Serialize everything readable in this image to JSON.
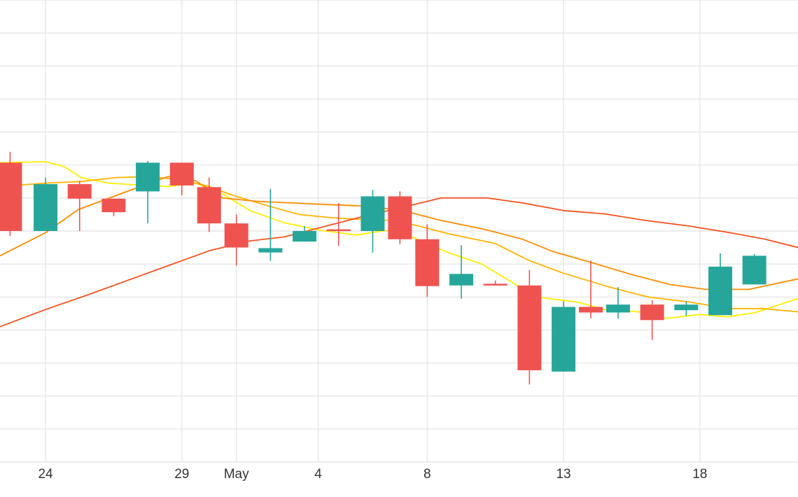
{
  "chart_data": {
    "type": "candlestick",
    "title": "",
    "xlabel": "",
    "ylabel": "",
    "grid": true,
    "x_tick_labels": [
      {
        "day": 0,
        "label": "24"
      },
      {
        "day": 5,
        "label": "29"
      },
      {
        "day": 7,
        "label": "May"
      },
      {
        "day": 10,
        "label": "4"
      },
      {
        "day": 14,
        "label": "8"
      },
      {
        "day": 19,
        "label": "13"
      },
      {
        "day": 24,
        "label": "18"
      }
    ],
    "x_range_days": [
      -1.67,
      27.6
    ],
    "y_range": [
      0,
      14
    ],
    "colors": {
      "up": "#26a69a",
      "down": "#ef5350",
      "ma_short": "#ffee00",
      "ma_2": "#ffb300",
      "ma_3": "#fb8c00",
      "ma_long": "#f4511e"
    },
    "candles": [
      {
        "day": -1.3,
        "open": 9.07,
        "close": 7.0,
        "high": 9.4,
        "low": 6.85
      },
      {
        "day": 0,
        "open": 7.0,
        "close": 8.42,
        "high": 8.62,
        "low": 7.0
      },
      {
        "day": 1.25,
        "open": 8.42,
        "close": 7.98,
        "high": 8.52,
        "low": 7.0
      },
      {
        "day": 2.5,
        "open": 7.98,
        "close": 7.57,
        "high": 7.98,
        "low": 7.45
      },
      {
        "day": 3.75,
        "open": 8.2,
        "close": 9.07,
        "high": 9.12,
        "low": 7.23
      },
      {
        "day": 5,
        "open": 9.07,
        "close": 8.38,
        "high": 9.07,
        "low": 8.08
      },
      {
        "day": 6,
        "open": 8.33,
        "close": 7.23,
        "high": 8.62,
        "low": 6.97
      },
      {
        "day": 7,
        "open": 7.23,
        "close": 6.5,
        "high": 7.5,
        "low": 5.95
      },
      {
        "day": 8.25,
        "open": 6.35,
        "close": 6.48,
        "high": 8.28,
        "low": 6.1
      },
      {
        "day": 9.5,
        "open": 6.68,
        "close": 7.0,
        "high": 7.15,
        "low": 6.68
      },
      {
        "day": 10.75,
        "open": 7.05,
        "close": 7.0,
        "high": 7.85,
        "low": 6.55
      },
      {
        "day": 12,
        "open": 7.0,
        "close": 8.05,
        "high": 8.25,
        "low": 6.35
      },
      {
        "day": 13,
        "open": 8.05,
        "close": 6.75,
        "high": 8.2,
        "low": 6.6
      },
      {
        "day": 14,
        "open": 6.75,
        "close": 5.33,
        "high": 7.2,
        "low": 5.0
      },
      {
        "day": 15.25,
        "open": 5.35,
        "close": 5.7,
        "high": 6.57,
        "low": 4.95
      },
      {
        "day": 16.5,
        "open": 5.4,
        "close": 5.35,
        "high": 5.5,
        "low": 5.35
      },
      {
        "day": 17.75,
        "open": 5.35,
        "close": 2.78,
        "high": 5.82,
        "low": 2.35
      },
      {
        "day": 19,
        "open": 2.74,
        "close": 4.7,
        "high": 4.88,
        "low": 2.74
      },
      {
        "day": 20,
        "open": 4.7,
        "close": 4.53,
        "high": 6.1,
        "low": 4.35
      },
      {
        "day": 21,
        "open": 4.53,
        "close": 4.77,
        "high": 5.3,
        "low": 4.35
      },
      {
        "day": 22.25,
        "open": 4.77,
        "close": 4.3,
        "high": 4.9,
        "low": 3.7
      },
      {
        "day": 23.5,
        "open": 4.6,
        "close": 4.77,
        "high": 4.87,
        "low": 4.43
      },
      {
        "day": 24.75,
        "open": 4.45,
        "close": 5.92,
        "high": 6.32,
        "low": 4.45
      },
      {
        "day": 26,
        "open": 5.38,
        "close": 6.25,
        "high": 6.3,
        "low": 5.5
      }
    ],
    "moving_averages": [
      {
        "color": "#ffee00",
        "points": [
          [
            -1.67,
            9.07
          ],
          [
            0,
            9.1
          ],
          [
            0.7,
            8.95
          ],
          [
            1.3,
            8.62
          ],
          [
            2.3,
            8.45
          ],
          [
            3.3,
            8.4
          ],
          [
            4.5,
            8.35
          ],
          [
            5.5,
            8.45
          ],
          [
            6.5,
            8.12
          ],
          [
            7.5,
            7.62
          ],
          [
            8.75,
            7.25
          ],
          [
            10.1,
            7.02
          ],
          [
            11.4,
            6.88
          ],
          [
            12.5,
            7.02
          ],
          [
            13.5,
            6.8
          ],
          [
            14.75,
            6.35
          ],
          [
            16,
            6.0
          ],
          [
            17,
            5.5
          ],
          [
            18,
            5.0
          ],
          [
            19.5,
            4.85
          ],
          [
            20.5,
            4.62
          ],
          [
            21.75,
            4.55
          ],
          [
            22.75,
            4.35
          ],
          [
            24,
            4.47
          ],
          [
            25,
            4.4
          ],
          [
            26,
            4.52
          ],
          [
            27.6,
            4.95
          ]
        ]
      },
      {
        "color": "#ffb300",
        "points": [
          [
            -1.67,
            8.35
          ],
          [
            0,
            8.45
          ],
          [
            1.3,
            8.5
          ],
          [
            2.6,
            8.62
          ],
          [
            3.8,
            8.65
          ],
          [
            5,
            8.55
          ],
          [
            6,
            8.35
          ],
          [
            6.8,
            8.1
          ],
          [
            8,
            7.8
          ],
          [
            9.3,
            7.5
          ],
          [
            10.5,
            7.4
          ],
          [
            11.6,
            7.35
          ],
          [
            12.75,
            7.32
          ],
          [
            13.7,
            7.15
          ],
          [
            14.75,
            6.92
          ],
          [
            16.5,
            6.62
          ],
          [
            17.75,
            6.1
          ],
          [
            19,
            5.72
          ],
          [
            20.6,
            5.32
          ],
          [
            22.1,
            5.0
          ],
          [
            23.6,
            4.85
          ],
          [
            25.1,
            4.65
          ],
          [
            26.3,
            4.65
          ],
          [
            27.6,
            4.55
          ]
        ]
      },
      {
        "color": "#fb8c00",
        "points": [
          [
            -1.67,
            6.25
          ],
          [
            0,
            6.95
          ],
          [
            1.2,
            7.65
          ],
          [
            3,
            8.2
          ],
          [
            4.5,
            8.65
          ],
          [
            5.5,
            8.52
          ],
          [
            6.5,
            8.0
          ],
          [
            7.75,
            7.9
          ],
          [
            9,
            7.85
          ],
          [
            10.4,
            7.8
          ],
          [
            11.8,
            7.75
          ],
          [
            13.1,
            7.62
          ],
          [
            14.5,
            7.32
          ],
          [
            16.1,
            7.05
          ],
          [
            17.5,
            6.75
          ],
          [
            18.6,
            6.38
          ],
          [
            20,
            6.05
          ],
          [
            21.5,
            5.68
          ],
          [
            22.9,
            5.38
          ],
          [
            24.2,
            5.23
          ],
          [
            25.8,
            5.23
          ],
          [
            27.6,
            5.55
          ]
        ]
      },
      {
        "color": "#f4511e",
        "points": [
          [
            -1.67,
            4.1
          ],
          [
            0,
            4.62
          ],
          [
            1.5,
            5.05
          ],
          [
            3,
            5.5
          ],
          [
            4.5,
            5.95
          ],
          [
            6,
            6.4
          ],
          [
            7.5,
            6.7
          ],
          [
            8.75,
            6.82
          ],
          [
            10.3,
            7.15
          ],
          [
            11.7,
            7.45
          ],
          [
            13.1,
            7.72
          ],
          [
            14.5,
            8.0
          ],
          [
            16.2,
            8.0
          ],
          [
            17.5,
            7.85
          ],
          [
            19,
            7.62
          ],
          [
            20.5,
            7.52
          ],
          [
            22,
            7.32
          ],
          [
            23.6,
            7.15
          ],
          [
            25.1,
            6.95
          ],
          [
            26.4,
            6.75
          ],
          [
            27.6,
            6.5
          ]
        ]
      }
    ]
  }
}
